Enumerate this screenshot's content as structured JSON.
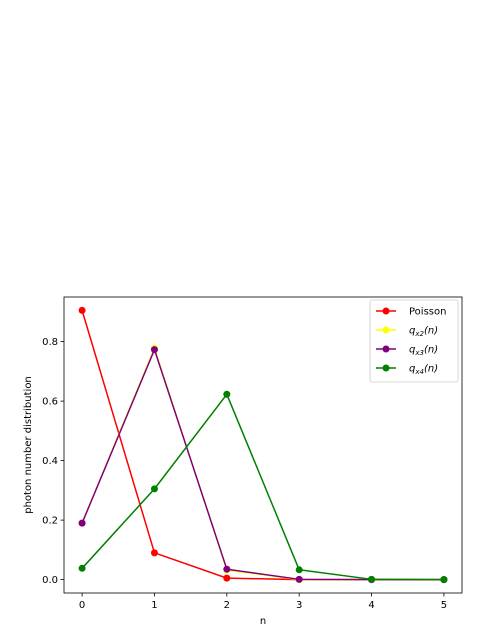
{
  "chart_data": {
    "type": "line",
    "xlabel": "n",
    "ylabel": "photon number distribution",
    "x": [
      0,
      1,
      2,
      3,
      4,
      5
    ],
    "xlim": [
      -0.25,
      5.25
    ],
    "ylim": [
      -0.045,
      0.95
    ],
    "xticks": [
      "0",
      "1",
      "2",
      "3",
      "4",
      "5"
    ],
    "yticks": [
      "0.0",
      "0.2",
      "0.4",
      "0.6",
      "0.8"
    ],
    "legend_position": "top-right",
    "grid": false,
    "series": [
      {
        "name": "Poisson",
        "color": "#ff0000",
        "values": [
          0.905,
          0.09,
          0.005,
          0.0,
          0.0,
          0.0
        ]
      },
      {
        "name": "q_x2(n)",
        "color": "#ffff00",
        "values": [
          0.19,
          0.778,
          0.032,
          0.0,
          0.0,
          0.0
        ]
      },
      {
        "name": "q_x3(n)",
        "color": "#800080",
        "values": [
          0.19,
          0.773,
          0.035,
          0.001,
          0.0,
          0.0
        ]
      },
      {
        "name": "q_x4(n)",
        "color": "#008000",
        "values": [
          0.038,
          0.305,
          0.623,
          0.033,
          0.001,
          0.0
        ]
      }
    ]
  },
  "legend": {
    "labels": [
      "Poisson",
      "q",
      "q",
      "q"
    ],
    "subscripts": [
      "",
      "x2",
      "x3",
      "x4"
    ],
    "suffix": "(n)"
  }
}
